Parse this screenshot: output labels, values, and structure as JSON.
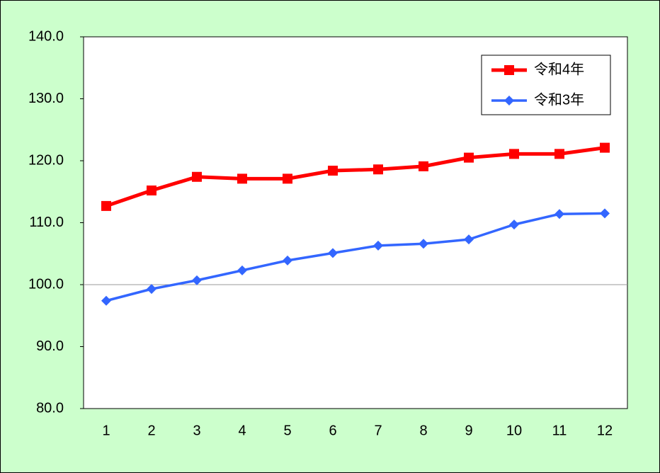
{
  "chart_data": {
    "type": "line",
    "categories": [
      "1",
      "2",
      "3",
      "4",
      "5",
      "6",
      "7",
      "8",
      "9",
      "10",
      "11",
      "12"
    ],
    "series": [
      {
        "name": "令和4年",
        "color": "#ff0000",
        "marker": "square",
        "values": [
          112.7,
          115.2,
          117.4,
          117.1,
          117.1,
          118.4,
          118.6,
          119.1,
          120.5,
          121.1,
          121.1,
          122.1
        ]
      },
      {
        "name": "令和3年",
        "color": "#3366ff",
        "marker": "diamond",
        "values": [
          97.4,
          99.3,
          100.7,
          102.3,
          103.9,
          105.1,
          106.3,
          106.6,
          107.3,
          109.7,
          111.4,
          111.5
        ]
      }
    ],
    "ylim": [
      80,
      140
    ],
    "yticks": [
      {
        "value": 80,
        "label": "80.0"
      },
      {
        "value": 90,
        "label": "90.0"
      },
      {
        "value": 100,
        "label": "100.0"
      },
      {
        "value": 110,
        "label": "110.0"
      },
      {
        "value": 120,
        "label": "120.0"
      },
      {
        "value": 130,
        "label": "130.0"
      },
      {
        "value": 140,
        "label": "140.0"
      }
    ],
    "reference_line": 100,
    "legend": "upper right"
  }
}
